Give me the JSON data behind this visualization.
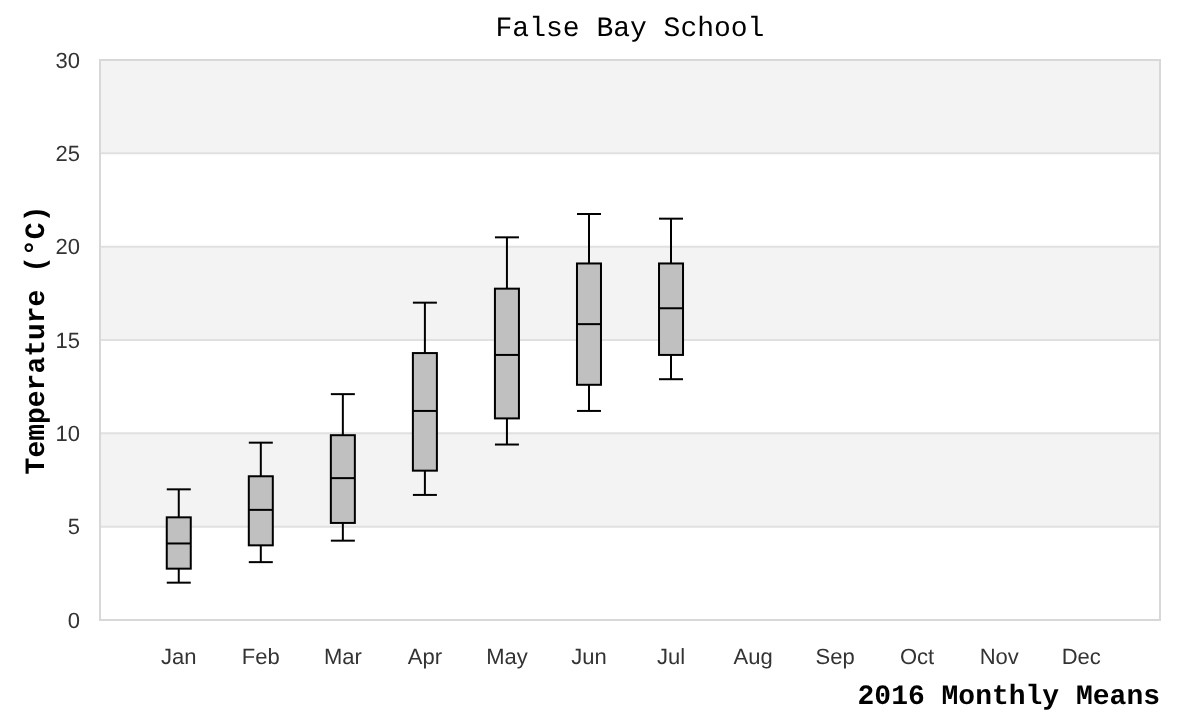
{
  "chart_data": {
    "type": "box",
    "title": "False Bay School",
    "xlabel": "2016 Monthly Means",
    "ylabel": "Temperature (°C)",
    "categories": [
      "Jan",
      "Feb",
      "Mar",
      "Apr",
      "May",
      "Jun",
      "Jul",
      "Aug",
      "Sep",
      "Oct",
      "Nov",
      "Dec"
    ],
    "boxes": [
      {
        "low": 2.0,
        "q1": 2.75,
        "median": 4.1,
        "q3": 5.5,
        "high": 7.0
      },
      {
        "low": 3.1,
        "q1": 4.0,
        "median": 5.9,
        "q3": 7.7,
        "high": 9.5
      },
      {
        "low": 4.25,
        "q1": 5.2,
        "median": 7.6,
        "q3": 9.9,
        "high": 12.1
      },
      {
        "low": 6.7,
        "q1": 8.0,
        "median": 11.2,
        "q3": 14.3,
        "high": 17.0
      },
      {
        "low": 9.4,
        "q1": 10.8,
        "median": 14.2,
        "q3": 17.75,
        "high": 20.5
      },
      {
        "low": 11.2,
        "q1": 12.6,
        "median": 15.85,
        "q3": 19.1,
        "high": 21.75
      },
      {
        "low": 12.9,
        "q1": 14.2,
        "median": 16.7,
        "q3": 19.1,
        "high": 21.5
      },
      null,
      null,
      null,
      null,
      null
    ],
    "color": "#c0c0c0",
    "ylim": [
      0,
      30
    ],
    "yticks": [
      0,
      5,
      10,
      15,
      20,
      25,
      30
    ],
    "grid": "y"
  }
}
